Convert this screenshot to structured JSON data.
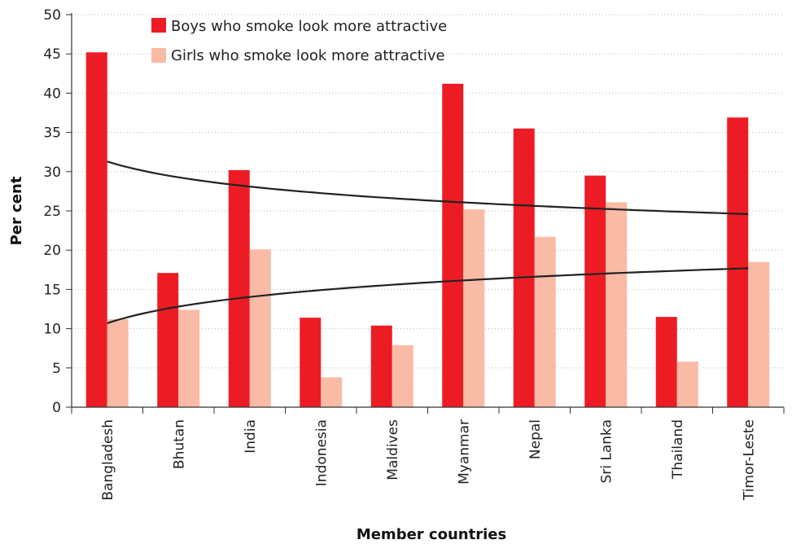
{
  "chart_data": {
    "type": "bar",
    "xlabel": "Member countries",
    "ylabel": "Per cent",
    "ylim": [
      0,
      50
    ],
    "yticks": [
      0,
      5,
      10,
      15,
      20,
      25,
      30,
      35,
      40,
      45,
      50
    ],
    "grid": "horizontal dotted",
    "legend_position": "top-left",
    "categories": [
      "Bangladesh",
      "Bhutan",
      "India",
      "Indonesia",
      "Maldives",
      "Myanmar",
      "Nepal",
      "Sri Lanka",
      "Thailand",
      "Timor-Leste"
    ],
    "series": [
      {
        "name": "Boys who smoke look more attractive",
        "color": "#ed1c24",
        "values": [
          45.2,
          17.1,
          30.2,
          11.4,
          10.4,
          41.2,
          35.5,
          29.5,
          11.5,
          36.9
        ]
      },
      {
        "name": "Girls who smoke look more attractive",
        "color": "#f9bba5",
        "values": [
          11.2,
          12.4,
          20.1,
          3.8,
          7.9,
          25.2,
          21.7,
          26.1,
          5.8,
          18.5
        ]
      }
    ],
    "trendlines": [
      {
        "series": "Boys who smoke look more attractive",
        "type": "logarithmic",
        "color": "#222222",
        "start": 31.3,
        "end": 24.6
      },
      {
        "series": "Girls who smoke look more attractive",
        "type": "logarithmic",
        "color": "#222222",
        "start": 10.7,
        "end": 17.7
      }
    ]
  }
}
